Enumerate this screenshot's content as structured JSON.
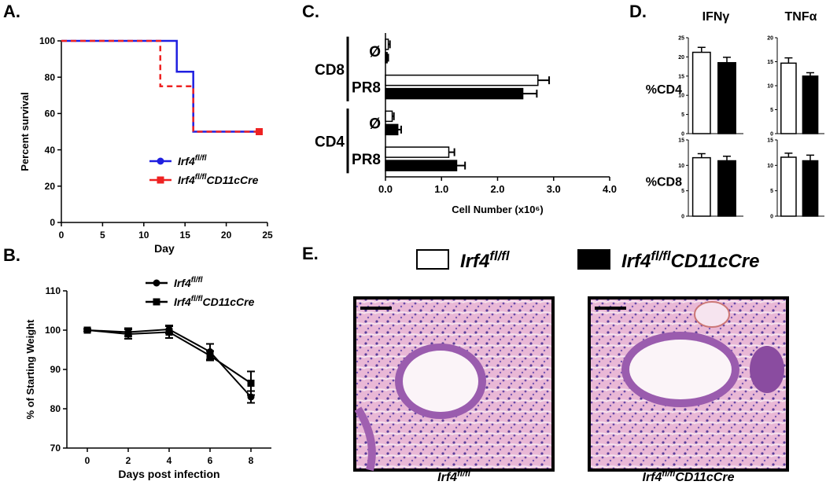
{
  "figure": {
    "panel_labels": [
      "A.",
      "B.",
      "C.",
      "D.",
      "E."
    ],
    "legend": [
      {
        "name": "Irf4",
        "name_sup": "fl/fl",
        "color": "#ffffff"
      },
      {
        "name": "Irf4",
        "name_sup": "fl/fl",
        "name_suffix": "CD11cCre",
        "color": "#000000"
      }
    ],
    "images": [
      {
        "name": "Irf4",
        "name_sup": "fl/fl"
      },
      {
        "name": "Irf4",
        "name_sup": "fl/fl",
        "name_suffix": "CD11cCre"
      }
    ]
  },
  "chart_data": [
    {
      "type": "step",
      "xlabel": "Day",
      "ylabel": "Percent survival",
      "xlim": [
        0,
        25
      ],
      "xticks": [
        0,
        5,
        10,
        15,
        20,
        25
      ],
      "ylim": [
        0,
        100
      ],
      "yticks": [
        0,
        20,
        40,
        60,
        80,
        100
      ],
      "legend": "lower right",
      "series": [
        {
          "name": "Irf4",
          "name_sup": "fl/fl",
          "color": "#1f1fe0",
          "marker": "circle",
          "dashed": false,
          "x": [
            0,
            14,
            16,
            24
          ],
          "values": [
            100,
            83,
            50,
            50
          ]
        },
        {
          "name": "Irf4",
          "name_sup": "fl/fl",
          "name_suffix": "CD11cCre",
          "color": "#ee2222",
          "marker": "square",
          "dashed": true,
          "x": [
            0,
            12,
            16,
            24
          ],
          "values": [
            100,
            75,
            50,
            50
          ]
        }
      ]
    },
    {
      "type": "line",
      "xlabel": "Days post infection",
      "ylabel": "% of Starting  Weight",
      "xlim": [
        -1,
        9
      ],
      "xticks": [
        0,
        2,
        4,
        6,
        8
      ],
      "ylim": [
        70,
        110
      ],
      "yticks": [
        70,
        80,
        90,
        100,
        110
      ],
      "legend": "upper center",
      "series": [
        {
          "name": "Irf4",
          "name_sup": "fl/fl",
          "color": "#000000",
          "marker": "circle",
          "x": [
            0,
            2,
            4,
            6,
            8
          ],
          "values": [
            100,
            99.5,
            100.2,
            94.5,
            83
          ],
          "errors": [
            0.3,
            1,
            1,
            2,
            1.5
          ]
        },
        {
          "name": "Irf4",
          "name_sup": "fl/fl",
          "name_suffix": "CD11cCre",
          "color": "#000000",
          "marker": "square",
          "x": [
            0,
            2,
            4,
            6,
            8
          ],
          "values": [
            100,
            99,
            99.5,
            93.5,
            86.5
          ],
          "errors": [
            0.3,
            1.2,
            1.5,
            1.2,
            3
          ]
        }
      ]
    },
    {
      "type": "hbar",
      "xlabel": "Cell Number (x10⁶)",
      "xlim": [
        0,
        4
      ],
      "xticks": [
        {
          "value": 0,
          "label": "0.0"
        },
        {
          "value": 1,
          "label": "1.0"
        },
        {
          "value": 2,
          "label": "2.0"
        },
        {
          "value": 3,
          "label": "3.0"
        },
        {
          "value": 4,
          "label": "4.0"
        }
      ],
      "groups": [
        {
          "name": "CD8",
          "categories": [
            "Ø",
            "PR8"
          ]
        },
        {
          "name": "CD4",
          "categories": [
            "Ø",
            "PR8"
          ]
        }
      ],
      "series": [
        {
          "color": "#ffffff",
          "values": [
            0.05,
            2.72,
            0.12,
            1.13
          ],
          "errors": [
            0.03,
            0.2,
            0.03,
            0.1
          ]
        },
        {
          "color": "#000000",
          "values": [
            0.03,
            2.45,
            0.22,
            1.27
          ],
          "errors": [
            0.02,
            0.25,
            0.06,
            0.15
          ]
        }
      ]
    },
    {
      "type": "bar",
      "title": "IFNγ",
      "ylabel": "%CD4",
      "ylim": [
        0,
        25
      ],
      "yticks": [
        0,
        5,
        10,
        15,
        20,
        25
      ],
      "colors": [
        "#ffffff",
        "#000000"
      ],
      "values": [
        21.2,
        18.5
      ],
      "errors": [
        1.3,
        1.4
      ]
    },
    {
      "type": "bar",
      "title": "TNFα",
      "ylim": [
        0,
        20
      ],
      "yticks": [
        0,
        5,
        10,
        15,
        20
      ],
      "colors": [
        "#ffffff",
        "#000000"
      ],
      "values": [
        14.7,
        12.0
      ],
      "errors": [
        1.1,
        0.7
      ]
    },
    {
      "type": "bar",
      "ylabel": "%CD8",
      "ylim": [
        0,
        15
      ],
      "yticks": [
        0,
        5,
        10,
        15
      ],
      "colors": [
        "#ffffff",
        "#000000"
      ],
      "values": [
        11.5,
        10.9
      ],
      "errors": [
        0.8,
        0.9
      ]
    },
    {
      "type": "bar",
      "ylim": [
        0,
        15
      ],
      "yticks": [
        0,
        5,
        10,
        15
      ],
      "colors": [
        "#ffffff",
        "#000000"
      ],
      "values": [
        11.6,
        10.9
      ],
      "errors": [
        0.8,
        1.1
      ]
    }
  ]
}
